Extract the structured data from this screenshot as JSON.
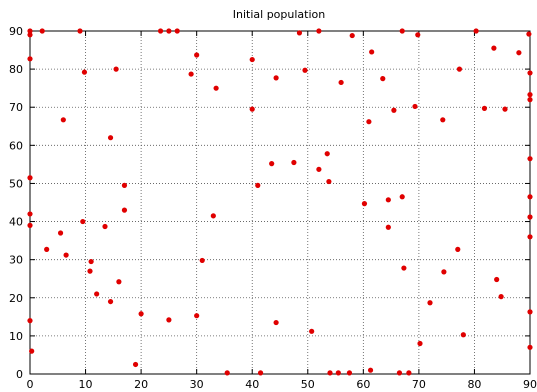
{
  "chart_data": {
    "type": "scatter",
    "title": "Initial population",
    "xlabel": "",
    "ylabel": "",
    "xlim": [
      0,
      90
    ],
    "ylim": [
      0,
      90
    ],
    "xticks": [
      0,
      10,
      20,
      30,
      40,
      50,
      60,
      70,
      80,
      90
    ],
    "yticks": [
      0,
      10,
      20,
      30,
      40,
      50,
      60,
      70,
      80,
      90
    ],
    "grid": true,
    "grid_style": "dotted",
    "marker_color": "#e00000",
    "series": [
      {
        "points": [
          [
            0,
            89
          ],
          [
            0,
            90
          ],
          [
            0,
            82.7
          ],
          [
            0,
            51.5
          ],
          [
            0,
            42
          ],
          [
            0,
            39
          ],
          [
            0,
            14
          ],
          [
            0.3,
            6
          ],
          [
            2.2,
            90
          ],
          [
            3,
            32.7
          ],
          [
            5.5,
            37
          ],
          [
            6,
            66.7
          ],
          [
            6.5,
            31.2
          ],
          [
            9,
            90
          ],
          [
            9.5,
            40
          ],
          [
            9.8,
            79.2
          ],
          [
            10.8,
            27
          ],
          [
            11,
            29.5
          ],
          [
            12,
            21
          ],
          [
            13.5,
            38.7
          ],
          [
            14.5,
            62
          ],
          [
            14.5,
            19
          ],
          [
            15.5,
            80
          ],
          [
            16,
            24.2
          ],
          [
            17,
            43
          ],
          [
            17,
            49.5
          ],
          [
            19,
            2.5
          ],
          [
            20,
            15.8
          ],
          [
            23.5,
            90
          ],
          [
            25,
            90
          ],
          [
            25,
            14.2
          ],
          [
            26.5,
            90
          ],
          [
            29,
            78.7
          ],
          [
            30,
            83.7
          ],
          [
            30,
            15.3
          ],
          [
            31,
            29.8
          ],
          [
            33,
            41.5
          ],
          [
            33.5,
            75
          ],
          [
            35.5,
            0.3
          ],
          [
            40,
            82.5
          ],
          [
            40,
            69.5
          ],
          [
            41,
            49.5
          ],
          [
            41.5,
            0.3
          ],
          [
            43.5,
            55.2
          ],
          [
            44.3,
            77.7
          ],
          [
            44.3,
            13.5
          ],
          [
            47.5,
            55.5
          ],
          [
            48.5,
            89.5
          ],
          [
            49.5,
            79.7
          ],
          [
            50.7,
            11.2
          ],
          [
            52,
            90
          ],
          [
            52,
            53.7
          ],
          [
            53.5,
            57.8
          ],
          [
            53.8,
            50.5
          ],
          [
            54,
            0.3
          ],
          [
            55.5,
            0.3
          ],
          [
            56,
            76.5
          ],
          [
            57.5,
            0.3
          ],
          [
            58,
            88.8
          ],
          [
            60.2,
            44.7
          ],
          [
            61,
            66.2
          ],
          [
            61.3,
            1
          ],
          [
            61.5,
            84.5
          ],
          [
            63.5,
            77.5
          ],
          [
            64.5,
            45.7
          ],
          [
            64.5,
            38.5
          ],
          [
            65.5,
            69.2
          ],
          [
            66.5,
            0.3
          ],
          [
            67,
            90
          ],
          [
            67,
            46.5
          ],
          [
            67.3,
            27.8
          ],
          [
            68.2,
            0.3
          ],
          [
            69.3,
            70.2
          ],
          [
            69.8,
            89
          ],
          [
            70.2,
            8
          ],
          [
            72,
            18.7
          ],
          [
            74.3,
            66.7
          ],
          [
            74.5,
            26.8
          ],
          [
            77,
            32.7
          ],
          [
            77.3,
            80
          ],
          [
            78,
            10.3
          ],
          [
            80.3,
            90
          ],
          [
            81.8,
            69.7
          ],
          [
            83.5,
            85.5
          ],
          [
            84,
            24.8
          ],
          [
            84.8,
            20.3
          ],
          [
            85.5,
            69.5
          ],
          [
            88,
            84.3
          ],
          [
            89.8,
            89.2
          ],
          [
            90,
            79
          ],
          [
            90,
            73.3
          ],
          [
            90,
            72
          ],
          [
            90,
            56.5
          ],
          [
            90,
            46.5
          ],
          [
            90,
            41.2
          ],
          [
            90,
            36
          ],
          [
            90,
            16.3
          ],
          [
            90,
            7
          ]
        ]
      }
    ]
  }
}
